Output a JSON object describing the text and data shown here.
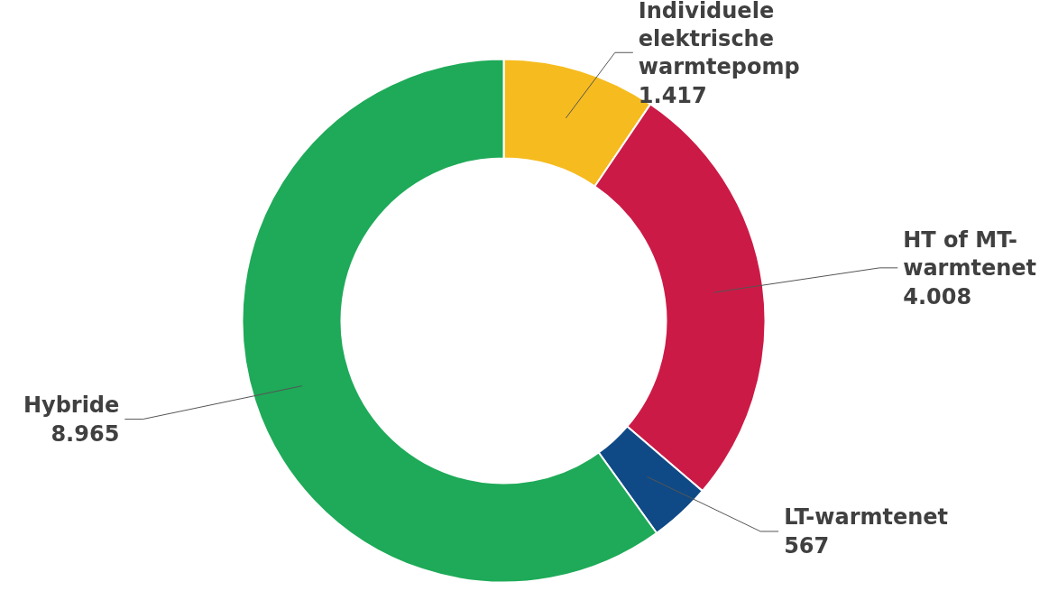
{
  "chart_data": {
    "type": "donut",
    "categories": [
      "Individuele elektrische warmtepomp",
      "HT of MT-warmtenet",
      "LT-warmtenet",
      "Hybride"
    ],
    "values": [
      1417,
      4008,
      567,
      8965
    ],
    "colors": [
      "#f6bb1e",
      "#cc1a46",
      "#0f4a86",
      "#1eaa58"
    ],
    "value_labels": [
      "1.417",
      "4.008",
      "567",
      "8.965"
    ]
  }
}
